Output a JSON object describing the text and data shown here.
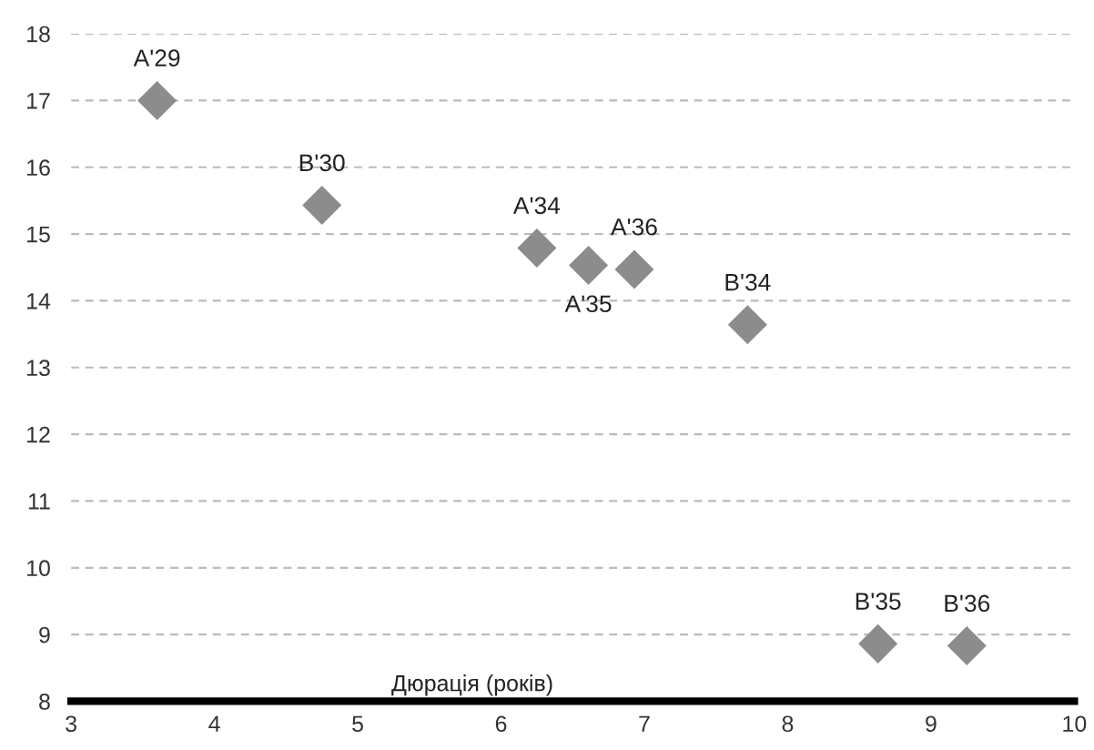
{
  "chart_data": {
    "type": "scatter",
    "xlabel": "Дюрація (років)",
    "x": [
      3.6,
      4.75,
      6.25,
      6.61,
      6.93,
      7.72,
      8.63,
      9.25
    ],
    "values": [
      17.0,
      15.43,
      14.79,
      14.53,
      14.47,
      13.64,
      8.86,
      8.83
    ],
    "annotations": [
      {
        "text": "A'29",
        "x": 3.6,
        "y": 17.0
      },
      {
        "text": "B'30",
        "x": 4.75,
        "y": 15.43
      },
      {
        "text": "A'34",
        "x": 6.25,
        "y": 14.79
      },
      {
        "text": "A'35",
        "x": 6.61,
        "y": 14.53
      },
      {
        "text": "A'36",
        "x": 6.93,
        "y": 14.47
      },
      {
        "text": "B'34",
        "x": 7.72,
        "y": 13.64
      },
      {
        "text": "B'35",
        "x": 8.63,
        "y": 8.86
      },
      {
        "text": "B'36",
        "x": 9.25,
        "y": 8.83
      }
    ],
    "color": "#8c8c8c",
    "marker": "diamond",
    "xlim": [
      3,
      10
    ],
    "ylim": [
      8,
      18
    ],
    "xticks": [
      3,
      4,
      5,
      6,
      7,
      8,
      9,
      10
    ],
    "yticks": [
      8,
      9,
      10,
      11,
      12,
      13,
      14,
      15,
      16,
      17,
      18
    ],
    "grid": "y",
    "legend": false
  }
}
